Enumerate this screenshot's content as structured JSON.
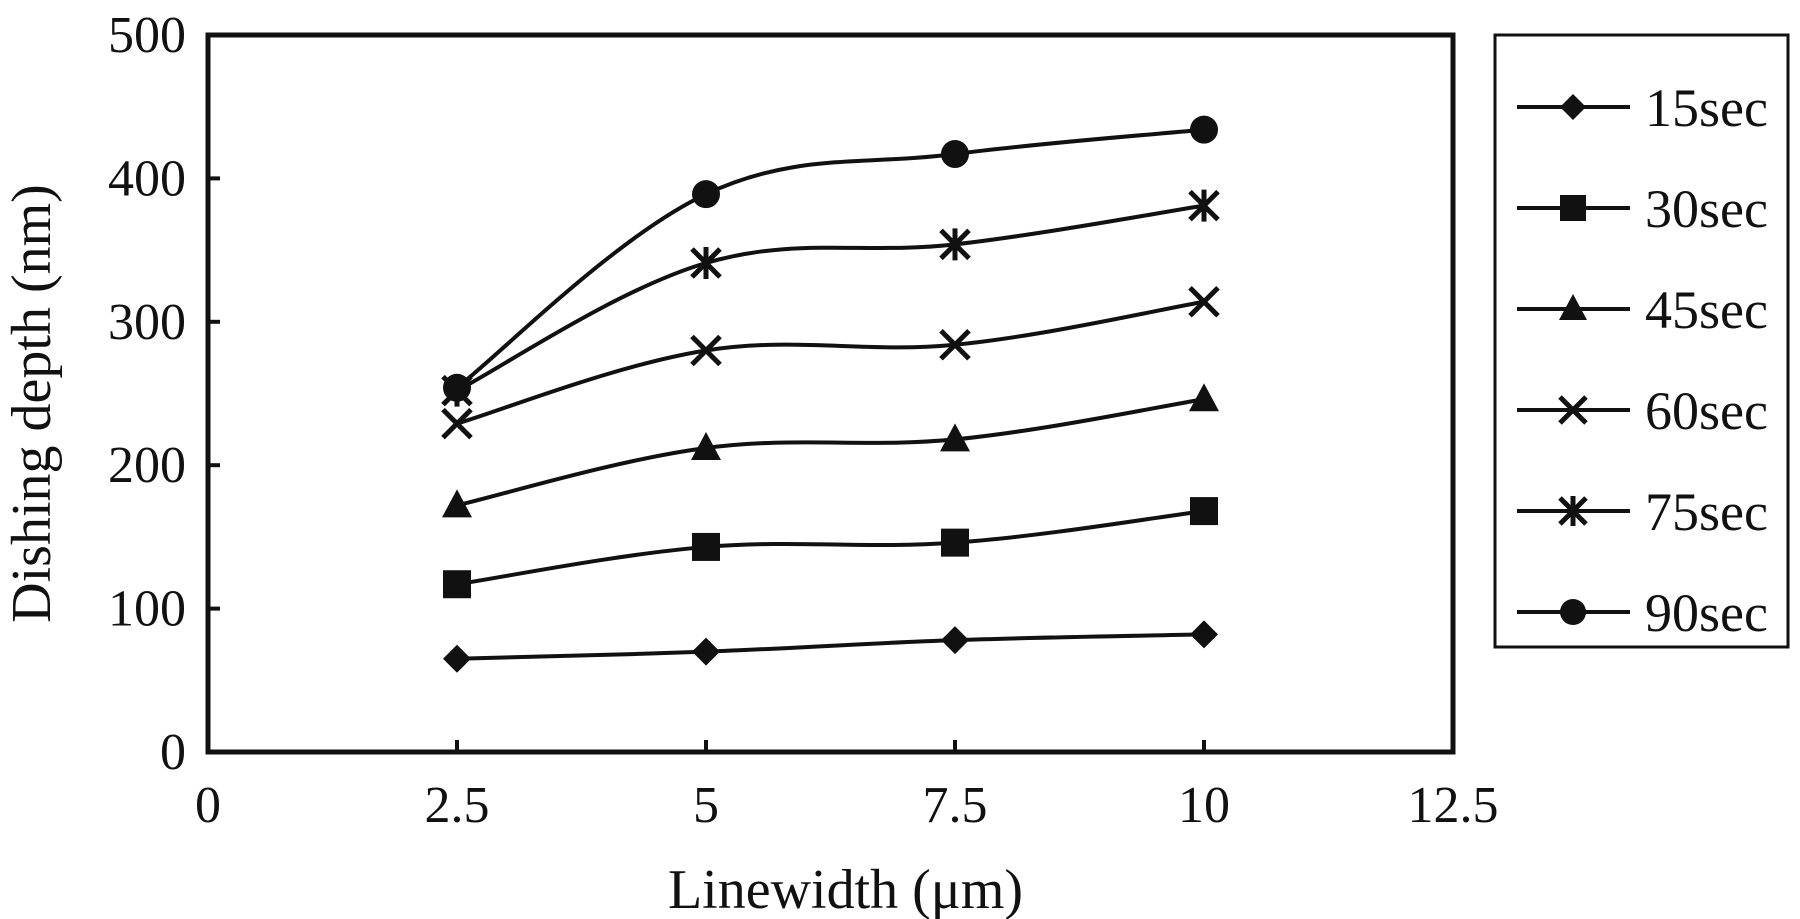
{
  "chart_data": {
    "type": "line",
    "title": "",
    "xlabel": "Linewidth (μm)",
    "ylabel": "Dishing depth (nm)",
    "xlim": [
      0,
      12.5
    ],
    "ylim": [
      0,
      500
    ],
    "xticks": [
      "0",
      "2.5",
      "5",
      "7.5",
      "10",
      "12.5"
    ],
    "yticks": [
      "0",
      "100",
      "200",
      "300",
      "400",
      "500"
    ],
    "grid": false,
    "legend_position": "right-outside",
    "x": [
      2.5,
      5,
      7.5,
      10
    ],
    "series": [
      {
        "name": "15sec",
        "marker": "diamond",
        "values": [
          65,
          70,
          78,
          82
        ]
      },
      {
        "name": "30sec",
        "marker": "square",
        "values": [
          117,
          143,
          146,
          168
        ]
      },
      {
        "name": "45sec",
        "marker": "triangle",
        "values": [
          172,
          212,
          218,
          246
        ]
      },
      {
        "name": "60sec",
        "marker": "x",
        "values": [
          229,
          280,
          284,
          314
        ]
      },
      {
        "name": "75sec",
        "marker": "star",
        "values": [
          252,
          341,
          354,
          381
        ]
      },
      {
        "name": "90sec",
        "marker": "circle",
        "values": [
          254,
          389,
          417,
          434
        ]
      }
    ],
    "colors": {
      "line": "#111111",
      "axis": "#111111"
    }
  }
}
